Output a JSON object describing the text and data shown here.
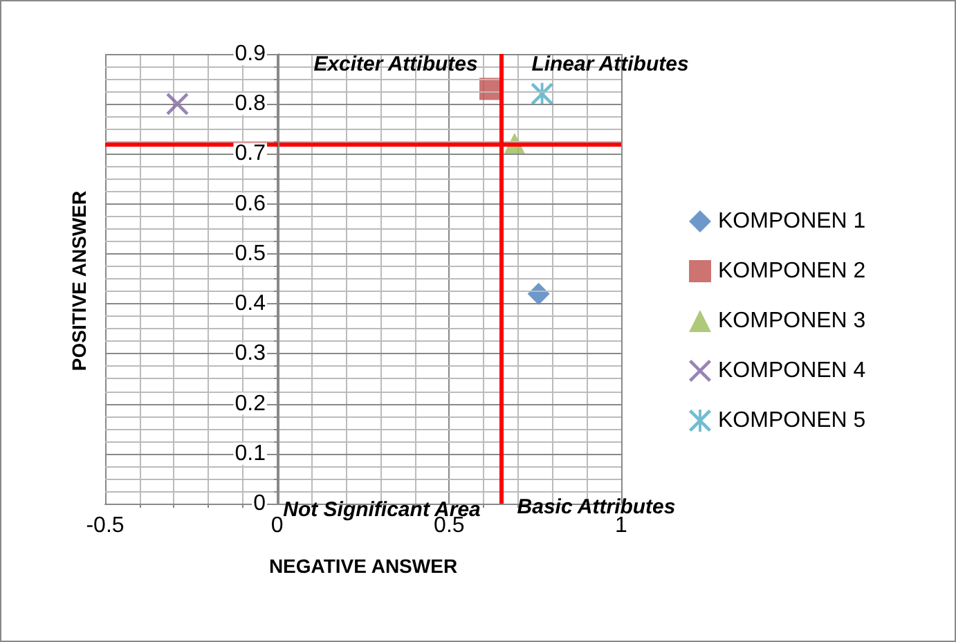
{
  "chart_data": {
    "type": "scatter",
    "xlabel": "NEGATIVE ANSWER",
    "ylabel": "POSITIVE ANSWER",
    "annotations": [
      "Exciter Attibutes",
      "Linear Attibutes",
      "Not Significant Area",
      "Basic Attributes"
    ],
    "series": [
      {
        "name": "KOMPONEN 1",
        "color": "#4a7ebb",
        "marker": "diamond",
        "x": [
          0.76
        ],
        "values": [
          0.42
        ]
      },
      {
        "name": "KOMPONEN 2",
        "color": "#c0504d",
        "marker": "square",
        "x": [
          0.62
        ],
        "values": [
          0.83
        ]
      },
      {
        "name": "KOMPONEN 3",
        "color": "#9bbb59",
        "marker": "triangle",
        "x": [
          0.69
        ],
        "values": [
          0.72
        ]
      },
      {
        "name": "KOMPONEN 4",
        "color": "#8064a2",
        "marker": "cross",
        "x": [
          -0.29
        ],
        "values": [
          0.8
        ]
      },
      {
        "name": "KOMPONEN 5",
        "color": "#4bacc6",
        "marker": "star",
        "x": [
          0.77
        ],
        "values": [
          0.82
        ]
      }
    ],
    "xlim": [
      -0.5,
      1
    ],
    "xticks": [
      -0.5,
      0,
      0.5,
      1
    ],
    "ylim": [
      0,
      0.9
    ],
    "yticks": [
      0,
      0.1,
      0.2,
      0.3,
      0.4,
      0.5,
      0.6,
      0.7,
      0.8,
      0.9
    ],
    "ref_lines": [
      {
        "axis": "x",
        "value": 0.65,
        "color": "#ff0000"
      },
      {
        "axis": "y",
        "value": 0.72,
        "color": "#ff0000"
      }
    ],
    "grid": true,
    "legend": "right"
  }
}
